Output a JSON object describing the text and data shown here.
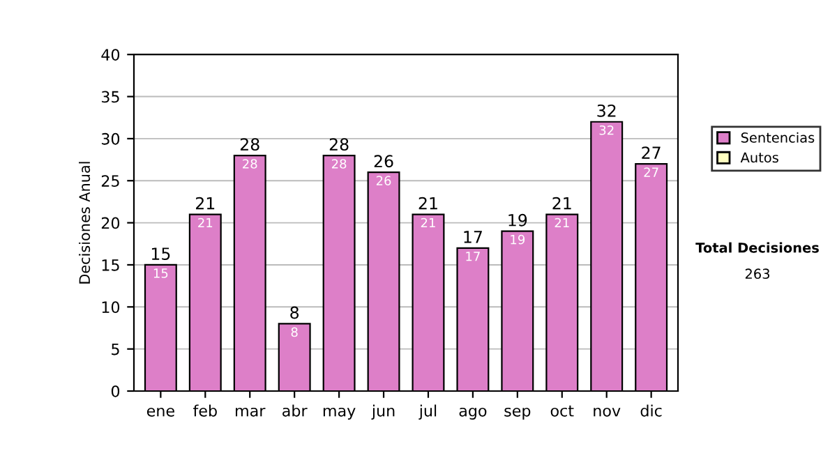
{
  "chart_data": {
    "type": "bar",
    "stacked": true,
    "ylabel": "Decisiones Anual",
    "categories": [
      "ene",
      "feb",
      "mar",
      "abr",
      "may",
      "jun",
      "jul",
      "ago",
      "sep",
      "oct",
      "nov",
      "dic"
    ],
    "series": [
      {
        "name": "Sentencias",
        "color": "#dd7fc8",
        "values": [
          15,
          21,
          28,
          8,
          28,
          26,
          21,
          17,
          19,
          21,
          32,
          27
        ],
        "value_labels": [
          "15",
          "21",
          "28",
          "8",
          "28",
          "26",
          "21",
          "17",
          "19",
          "21",
          "32",
          "27"
        ]
      },
      {
        "name": "Autos",
        "color": "#ffffc0",
        "values": [
          null,
          null,
          null,
          null,
          null,
          null,
          null,
          null,
          null,
          null,
          null,
          null
        ]
      }
    ],
    "totals": [
      "15",
      "21",
      "28",
      "8",
      "28",
      "26",
      "21",
      "17",
      "19",
      "21",
      "32",
      "27"
    ],
    "ylim": [
      0,
      40
    ],
    "yticks": [
      0,
      5,
      10,
      15,
      20,
      25,
      30,
      35,
      40
    ],
    "grid": "y",
    "legend": "right",
    "annotations": [
      "Total Decisiones",
      "263"
    ]
  }
}
